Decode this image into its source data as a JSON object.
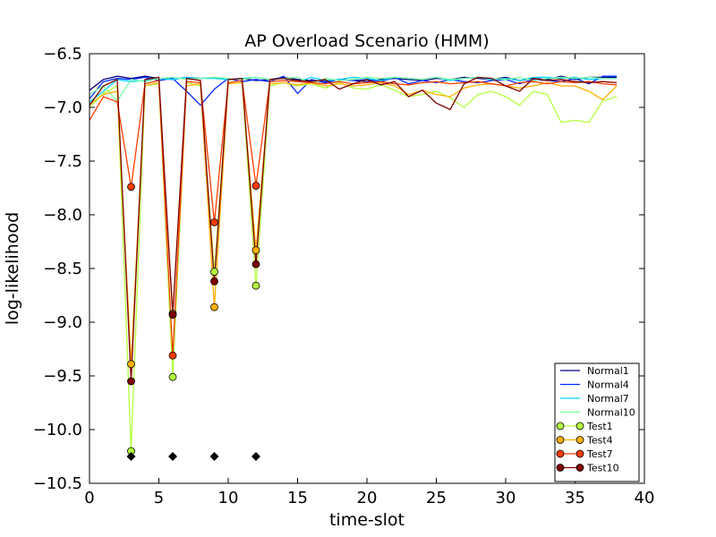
{
  "chart_data": {
    "type": "line",
    "title": "AP Overload Scenario (HMM)",
    "xlabel": "time-slot",
    "ylabel": "log-likelihood",
    "xlim": [
      0,
      40
    ],
    "ylim": [
      -10.5,
      -6.5
    ],
    "xticks": [
      0,
      5,
      10,
      15,
      20,
      25,
      30,
      35,
      40
    ],
    "yticks": [
      -6.5,
      -7.0,
      -7.5,
      -8.0,
      -8.5,
      -9.0,
      -9.5,
      -10.0,
      -10.5
    ],
    "xtick_labels": [
      "0",
      "5",
      "10",
      "15",
      "20",
      "25",
      "30",
      "35",
      "40"
    ],
    "ytick_labels": [
      "−6.5",
      "−7.0",
      "−7.5",
      "−8.0",
      "−8.5",
      "−9.0",
      "−9.5",
      "−10.0",
      "−10.5"
    ],
    "legend_position": "lower-right",
    "x": [
      0,
      1,
      2,
      3,
      4,
      5,
      6,
      7,
      8,
      9,
      10,
      11,
      12,
      13,
      14,
      15,
      16,
      17,
      18,
      19,
      20,
      21,
      22,
      23,
      24,
      25,
      26,
      27,
      28,
      29,
      30,
      31,
      32,
      33,
      34,
      35,
      36,
      37,
      38
    ],
    "series": [
      {
        "name": "Normal1",
        "color": "#00007f",
        "marker": "none",
        "values": [
          -6.84,
          -6.74,
          -6.71,
          -6.73,
          -6.71,
          -6.73,
          -6.74,
          -6.72,
          -6.73,
          -6.72,
          -6.74,
          -6.73,
          -6.75,
          -6.74,
          -6.72,
          -6.74,
          -6.75,
          -6.76,
          -6.74,
          -6.75,
          -6.76,
          -6.74,
          -6.73,
          -6.74,
          -6.75,
          -6.73,
          -6.74,
          -6.72,
          -6.73,
          -6.74,
          -6.72,
          -6.75,
          -6.73,
          -6.74,
          -6.71,
          -6.74,
          -6.72,
          -6.72,
          -6.72
        ]
      },
      {
        "name": "Normal4",
        "color": "#0028ff",
        "marker": "none",
        "values": [
          -6.92,
          -6.76,
          -6.73,
          -6.74,
          -6.72,
          -6.75,
          -6.73,
          -6.85,
          -6.98,
          -6.83,
          -6.73,
          -6.76,
          -6.74,
          -6.76,
          -6.71,
          -6.87,
          -6.74,
          -6.77,
          -6.74,
          -6.75,
          -6.74,
          -6.76,
          -6.72,
          -6.78,
          -6.75,
          -6.77,
          -6.74,
          -6.76,
          -6.77,
          -6.75,
          -6.74,
          -6.78,
          -6.74,
          -6.75,
          -6.76,
          -6.73,
          -6.78,
          -6.71,
          -6.71
        ]
      },
      {
        "name": "Normal7",
        "color": "#00d4ff",
        "marker": "none",
        "values": [
          -6.95,
          -6.85,
          -6.74,
          -6.76,
          -6.75,
          -6.73,
          -6.74,
          -6.72,
          -6.73,
          -6.73,
          -6.74,
          -6.73,
          -6.72,
          -6.74,
          -6.73,
          -6.76,
          -6.72,
          -6.75,
          -6.74,
          -6.72,
          -6.73,
          -6.75,
          -6.72,
          -6.73,
          -6.74,
          -6.72,
          -6.75,
          -6.73,
          -6.72,
          -6.74,
          -6.73,
          -6.75,
          -6.72,
          -6.72,
          -6.73,
          -6.72,
          -6.74,
          -6.73,
          -6.73
        ]
      },
      {
        "name": "Normal10",
        "color": "#7dffa0",
        "marker": "none",
        "values": [
          -6.88,
          -6.8,
          -6.94,
          -6.74,
          -6.76,
          -6.73,
          -6.72,
          -6.74,
          -6.73,
          -6.72,
          -6.73,
          -6.74,
          -6.72,
          -6.74,
          -6.73,
          -6.72,
          -6.78,
          -6.73,
          -6.75,
          -6.74,
          -6.72,
          -6.73,
          -6.72,
          -6.73,
          -6.74,
          -6.72,
          -6.74,
          -6.73,
          -6.72,
          -6.73,
          -6.74,
          -6.72,
          -6.75,
          -6.73,
          -6.72,
          -6.73,
          -6.72,
          -6.73,
          -6.73
        ]
      },
      {
        "name": "Test1",
        "color": "#b5ff3e",
        "marker": "circle",
        "marker_indices": [
          3,
          6,
          9,
          12
        ],
        "values": [
          -7.0,
          -6.87,
          -6.8,
          -10.2,
          -6.8,
          -6.78,
          -9.51,
          -6.77,
          -6.8,
          -8.53,
          -6.78,
          -6.77,
          -8.66,
          -6.8,
          -6.77,
          -6.8,
          -6.78,
          -6.82,
          -6.77,
          -6.82,
          -6.83,
          -6.79,
          -6.84,
          -6.9,
          -6.88,
          -6.85,
          -6.91,
          -7.0,
          -6.88,
          -6.85,
          -6.9,
          -6.98,
          -6.85,
          -6.88,
          -7.14,
          -7.12,
          -7.14,
          -6.94,
          -6.9
        ]
      },
      {
        "name": "Test4",
        "color": "#ffb000",
        "marker": "circle",
        "marker_indices": [
          3,
          6,
          9,
          12
        ],
        "values": [
          -6.97,
          -6.88,
          -6.85,
          -9.39,
          -6.8,
          -6.77,
          -8.92,
          -6.8,
          -6.78,
          -8.86,
          -6.78,
          -6.77,
          -8.33,
          -6.78,
          -6.77,
          -6.79,
          -6.77,
          -6.8,
          -6.78,
          -6.8,
          -6.79,
          -6.77,
          -6.8,
          -6.88,
          -6.84,
          -6.88,
          -6.9,
          -6.82,
          -6.79,
          -6.78,
          -6.8,
          -6.82,
          -6.8,
          -6.77,
          -6.8,
          -6.8,
          -6.85,
          -6.93,
          -6.8
        ]
      },
      {
        "name": "Test7",
        "color": "#ff3c00",
        "marker": "circle",
        "marker_indices": [
          3,
          6,
          9,
          12
        ],
        "values": [
          -7.12,
          -6.9,
          -6.95,
          -7.74,
          -6.78,
          -6.75,
          -9.31,
          -6.76,
          -6.77,
          -8.07,
          -6.77,
          -6.75,
          -7.73,
          -6.76,
          -6.75,
          -6.76,
          -6.77,
          -6.78,
          -6.76,
          -6.78,
          -6.77,
          -6.76,
          -6.78,
          -6.79,
          -6.77,
          -6.76,
          -6.78,
          -6.77,
          -6.76,
          -6.78,
          -6.8,
          -6.77,
          -6.76,
          -6.78,
          -6.76,
          -6.77,
          -6.76,
          -6.78,
          -6.79
        ]
      },
      {
        "name": "Test10",
        "color": "#7f0000",
        "marker": "circle",
        "marker_indices": [
          3,
          6,
          9,
          12
        ],
        "values": [
          -6.98,
          -6.8,
          -6.74,
          -9.55,
          -6.74,
          -6.72,
          -8.93,
          -6.73,
          -6.75,
          -8.62,
          -6.74,
          -6.73,
          -8.46,
          -6.74,
          -6.73,
          -6.75,
          -6.76,
          -6.74,
          -6.83,
          -6.78,
          -6.74,
          -6.79,
          -6.76,
          -6.9,
          -6.84,
          -6.96,
          -7.02,
          -6.78,
          -6.72,
          -6.73,
          -6.8,
          -6.85,
          -6.73,
          -6.75,
          -6.74,
          -6.76,
          -6.77,
          -6.76,
          -6.77
        ]
      }
    ],
    "anomaly_markers": {
      "color": "#000000",
      "x": [
        3,
        6,
        9,
        12
      ],
      "y": [
        -10.25,
        -10.25,
        -10.25,
        -10.25
      ]
    }
  }
}
